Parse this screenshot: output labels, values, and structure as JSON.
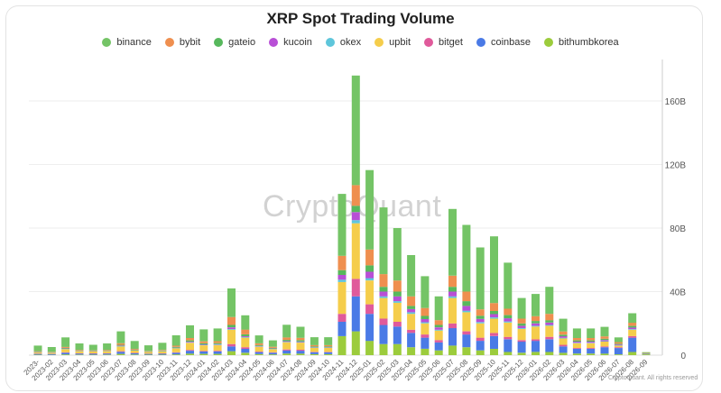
{
  "chart_data": {
    "type": "bar",
    "stacked": true,
    "title": "XRP Spot Trading Volume",
    "xlabel": "",
    "ylabel": "",
    "ylim": [
      0,
      180
    ],
    "y_unit": "B",
    "y_axis_side": "right",
    "y_ticks": [
      "0",
      "40B",
      "80B",
      "120B",
      "160B"
    ],
    "grid": true,
    "legend_position": "top",
    "categories": [
      "2023-01",
      "2023-02",
      "2023-03",
      "2023-04",
      "2023-05",
      "2023-06",
      "2023-07",
      "2023-08",
      "2023-09",
      "2023-10",
      "2023-11",
      "2023-12",
      "2024-01",
      "2024-02",
      "2024-03",
      "2024-04",
      "2024-05",
      "2024-06",
      "2024-07",
      "2024-08",
      "2024-09",
      "2024-10",
      "2024-11",
      "2024-12",
      "2025-01",
      "2025-02",
      "2025-03",
      "2025-04",
      "2025-05",
      "2025-06",
      "2025-07",
      "2025-08",
      "2025-09",
      "2025-10",
      "2025-11",
      "2025-12",
      "2026-01",
      "2026-02",
      "2026-03",
      "2026-04",
      "2026-05",
      "2026-06",
      "2026-07",
      "2026-08",
      "2026-09"
    ],
    "x_tick_labels": [
      "2023-",
      "2023-02",
      "2023-03",
      "2023-04",
      "2023-05",
      "2023-06",
      "2023-07",
      "2023-08",
      "2023-09",
      "2023-10",
      "2023-11",
      "2023-12",
      "2024-01",
      "2024-02",
      "2024-03",
      "2024-04",
      "2024-05",
      "2024-06",
      "2024-07",
      "2024-08",
      "2024-09",
      "2024-10",
      "2024-11",
      "2024-12",
      "2025-01",
      "2025-02",
      "2025-03",
      "2025-04",
      "2025-05",
      "2025-06",
      "2025-07",
      "2025-08",
      "2025-09",
      "2025-10",
      "2025-11",
      "2025-12",
      "2026-01",
      "2026-02",
      "2026-03",
      "2026-04",
      "2026-05",
      "2026-06",
      "2026-07",
      "2026-08",
      "2026-09"
    ],
    "series": [
      {
        "name": "bithumbkorea",
        "color": "#9ccc3c",
        "values": [
          0.3,
          0.2,
          0.5,
          0.3,
          0.3,
          0.3,
          0.8,
          0.4,
          0.3,
          0.3,
          0.5,
          1.0,
          0.8,
          0.8,
          2.5,
          1.5,
          0.7,
          0.5,
          1.0,
          1.0,
          0.6,
          0.6,
          12,
          15,
          9,
          7,
          7,
          5,
          4,
          3,
          6,
          5,
          3,
          4,
          2,
          1.5,
          2,
          2,
          1.5,
          1,
          1,
          1,
          0.5,
          2,
          0.5
        ]
      },
      {
        "name": "coinbase",
        "color": "#4a7ae6",
        "values": [
          0.5,
          0.5,
          1.0,
          0.7,
          0.6,
          0.7,
          1.3,
          0.8,
          0.5,
          0.6,
          1.0,
          1.8,
          1.5,
          1.6,
          3,
          2.5,
          1.2,
          1.0,
          2.0,
          1.8,
          1.2,
          1.2,
          9,
          22,
          17,
          12,
          11,
          9,
          7,
          5,
          11,
          8,
          6,
          8,
          8,
          7,
          7,
          8,
          4,
          3,
          3,
          4,
          4,
          9,
          0.4
        ]
      },
      {
        "name": "bitget",
        "color": "#e05a9b",
        "values": [
          0.2,
          0.1,
          0.3,
          0.2,
          0.2,
          0.2,
          0.4,
          0.2,
          0.2,
          0.2,
          0.3,
          0.5,
          0.4,
          0.4,
          1.5,
          1.0,
          0.4,
          0.3,
          0.6,
          0.6,
          0.3,
          0.3,
          5,
          11,
          6,
          4,
          3,
          2,
          2,
          1.5,
          3,
          2,
          2,
          2,
          1.5,
          1,
          1,
          1.5,
          1,
          0.5,
          0.5,
          0.5,
          0.5,
          1,
          0
        ]
      },
      {
        "name": "upbit",
        "color": "#f5cd4b",
        "values": [
          0.8,
          0.7,
          2.0,
          1.3,
          1.2,
          1.3,
          3.0,
          1.5,
          1.0,
          1.3,
          2.5,
          4.5,
          3.5,
          3.5,
          9,
          6,
          3,
          2,
          4.5,
          4.5,
          2.5,
          2.5,
          20,
          35,
          15,
          13,
          12,
          10,
          7,
          6,
          16,
          12,
          9,
          9,
          9,
          7,
          8,
          7,
          4,
          3,
          3,
          3,
          1,
          4,
          0.3
        ]
      },
      {
        "name": "okex",
        "color": "#5ec6db",
        "values": [
          0.1,
          0.1,
          0.2,
          0.1,
          0.1,
          0.1,
          0.2,
          0.1,
          0.1,
          0.1,
          0.2,
          0.3,
          0.3,
          0.3,
          0.5,
          0.4,
          0.2,
          0.2,
          0.3,
          0.3,
          0.2,
          0.2,
          1.5,
          2,
          1.5,
          1,
          1,
          1,
          0.7,
          0.5,
          1,
          1,
          0.8,
          0.8,
          0.7,
          0.5,
          0.5,
          0.5,
          0.4,
          0.3,
          0.3,
          0.3,
          0.2,
          0.4,
          0
        ]
      },
      {
        "name": "kucoin",
        "color": "#b84fd6",
        "values": [
          0.1,
          0.1,
          0.2,
          0.1,
          0.1,
          0.1,
          0.3,
          0.1,
          0.1,
          0.1,
          0.2,
          0.4,
          0.3,
          0.3,
          1,
          0.5,
          0.3,
          0.2,
          0.4,
          0.4,
          0.2,
          0.2,
          3,
          5,
          4,
          3,
          3,
          2,
          2,
          1.5,
          3,
          3,
          2,
          2,
          2,
          1.5,
          1.5,
          1.5,
          1,
          0.7,
          0.7,
          0.7,
          0.5,
          1,
          0
        ]
      },
      {
        "name": "gateio",
        "color": "#57b85c",
        "values": [
          0.2,
          0.2,
          0.4,
          0.3,
          0.2,
          0.3,
          0.5,
          0.3,
          0.2,
          0.3,
          0.5,
          0.8,
          0.7,
          0.7,
          1.5,
          1.2,
          0.6,
          0.4,
          0.8,
          0.8,
          0.5,
          0.5,
          3,
          4,
          4,
          3,
          3,
          2,
          2,
          1.5,
          3,
          3,
          2,
          2,
          2,
          1.5,
          1.5,
          1.5,
          1,
          0.8,
          0.8,
          0.8,
          0.5,
          1,
          0
        ]
      },
      {
        "name": "bybit",
        "color": "#ef8f4f",
        "values": [
          0.3,
          0.2,
          0.6,
          0.4,
          0.3,
          0.4,
          1.0,
          0.5,
          0.3,
          0.4,
          0.8,
          1.5,
          1.2,
          1.2,
          5,
          3,
          1,
          0.7,
          1.5,
          1.5,
          0.8,
          0.8,
          9,
          13,
          10,
          8,
          7,
          6,
          5,
          3,
          7,
          6,
          4,
          5,
          4,
          3,
          3,
          4,
          2,
          1.5,
          1.5,
          1.5,
          1,
          2,
          0.2
        ]
      },
      {
        "name": "binance",
        "color": "#74c466",
        "values": [
          3.5,
          3.0,
          6.0,
          4.0,
          3.5,
          4.0,
          7.5,
          5.0,
          3.5,
          4.5,
          6.5,
          8.0,
          7.5,
          8.0,
          18,
          9,
          5,
          4,
          8,
          7,
          5,
          5,
          39,
          69,
          50,
          42,
          33,
          26,
          20,
          15,
          42,
          42,
          39,
          42,
          29,
          13,
          14,
          17,
          8,
          6,
          6,
          6,
          3,
          6,
          0.5
        ]
      }
    ]
  },
  "legend": [
    {
      "name": "binance",
      "color": "#74c466"
    },
    {
      "name": "bybit",
      "color": "#ef8f4f"
    },
    {
      "name": "gateio",
      "color": "#57b85c"
    },
    {
      "name": "kucoin",
      "color": "#b84fd6"
    },
    {
      "name": "okex",
      "color": "#5ec6db"
    },
    {
      "name": "upbit",
      "color": "#f5cd4b"
    },
    {
      "name": "bitget",
      "color": "#e05a9b"
    },
    {
      "name": "coinbase",
      "color": "#4a7ae6"
    },
    {
      "name": "bithumbkorea",
      "color": "#9ccc3c"
    }
  ],
  "watermark": "CryptoQuant",
  "footer": "CryptoQuant. All rights reserved"
}
